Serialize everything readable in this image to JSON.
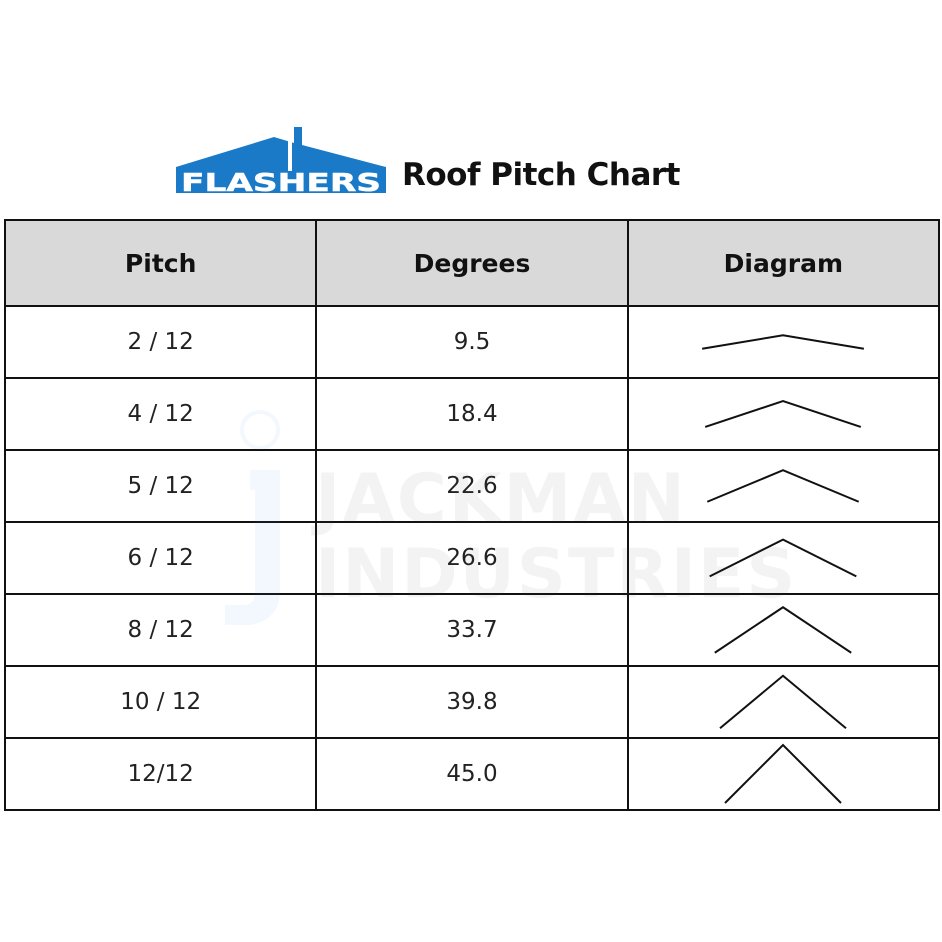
{
  "logo": {
    "text": "FLASHERS",
    "color": "#1a7ac8"
  },
  "title": "Roof Pitch Chart",
  "watermark": {
    "line1": "JACKMAN",
    "line2": "INDUSTRIES",
    "color": "#3a9ae0"
  },
  "table": {
    "headers": [
      "Pitch",
      "Degrees",
      "Diagram"
    ],
    "rows": [
      {
        "pitch": "2 / 12",
        "degrees": "9.5"
      },
      {
        "pitch": "4 / 12",
        "degrees": "18.4"
      },
      {
        "pitch": "5 / 12",
        "degrees": "22.6"
      },
      {
        "pitch": "6 / 12",
        "degrees": "26.6"
      },
      {
        "pitch": "8 / 12",
        "degrees": "33.7"
      },
      {
        "pitch": "10 / 12",
        "degrees": "39.8"
      },
      {
        "pitch": "12/12",
        "degrees": "45.0"
      }
    ]
  }
}
